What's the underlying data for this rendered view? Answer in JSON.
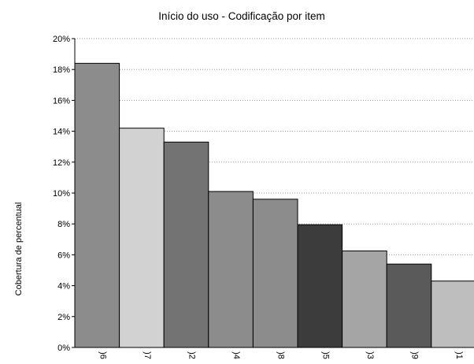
{
  "chart_data": {
    "type": "bar",
    "title": "Início do uso - Codificação por item",
    "xlabel": "",
    "ylabel": "Cobertura de percentual",
    "ylim": [
      0,
      20
    ],
    "y_ticks": [
      "0%",
      "2%",
      "4%",
      "6%",
      "8%",
      "10%",
      "12%",
      "14%",
      "16%",
      "18%",
      "20%"
    ],
    "grid": "horizontal dotted",
    "categories": [
      ")6",
      ")7",
      ")2",
      ")4",
      ")8",
      ")5",
      ")3",
      ")9",
      ")1"
    ],
    "values": [
      18.4,
      14.2,
      13.3,
      10.1,
      9.6,
      7.95,
      6.25,
      5.4,
      4.3
    ],
    "colors": [
      "#8c8c8c",
      "#d2d2d2",
      "#737373",
      "#8c8c8c",
      "#8c8c8c",
      "#3c3c3c",
      "#a5a5a5",
      "#5a5a5a",
      "#bebebe"
    ]
  }
}
